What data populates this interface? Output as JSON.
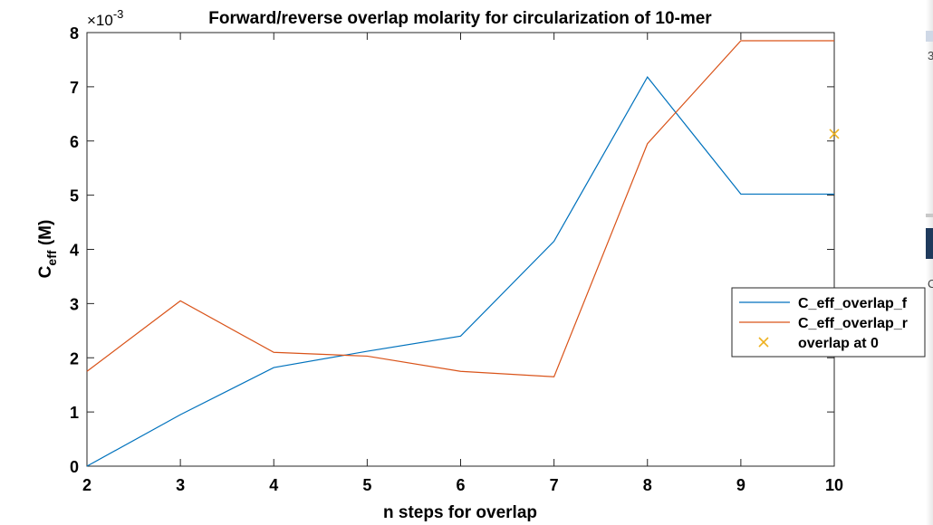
{
  "chart_data": {
    "type": "line",
    "title": "Forward/reverse overlap molarity for circularization of 10-mer",
    "xlabel": "n steps for overlap",
    "ylabel_main": "C",
    "ylabel_sub": "eff",
    "ylabel_unit": " (M)",
    "y_exponent_base": "×10",
    "y_exponent_power": "-3",
    "xlim": [
      2,
      10
    ],
    "ylim": [
      0,
      8
    ],
    "x_ticks": [
      2,
      3,
      4,
      5,
      6,
      7,
      8,
      9,
      10
    ],
    "y_ticks": [
      0,
      1,
      2,
      3,
      4,
      5,
      6,
      7,
      8
    ],
    "grid": false,
    "legend_position": "right",
    "series": [
      {
        "name": "C_eff_overlap_f",
        "color": "#0072BD",
        "x": [
          2,
          3,
          4,
          5,
          6,
          7,
          8,
          9,
          10
        ],
        "y": [
          0.0,
          0.95,
          1.82,
          2.12,
          2.4,
          4.15,
          7.18,
          5.02,
          5.02
        ]
      },
      {
        "name": "C_eff_overlap_r",
        "color": "#D95319",
        "x": [
          2,
          3,
          4,
          5,
          6,
          7,
          8,
          9,
          10
        ],
        "y": [
          1.75,
          3.05,
          2.1,
          2.03,
          1.75,
          1.65,
          5.95,
          7.85,
          7.85
        ]
      },
      {
        "name": "overlap at 0",
        "color": "#EDB120",
        "marker": "x",
        "x": [
          10
        ],
        "y": [
          6.13
        ]
      }
    ]
  },
  "edge": {
    "glyph_top": "3",
    "glyph_mid": "C"
  }
}
